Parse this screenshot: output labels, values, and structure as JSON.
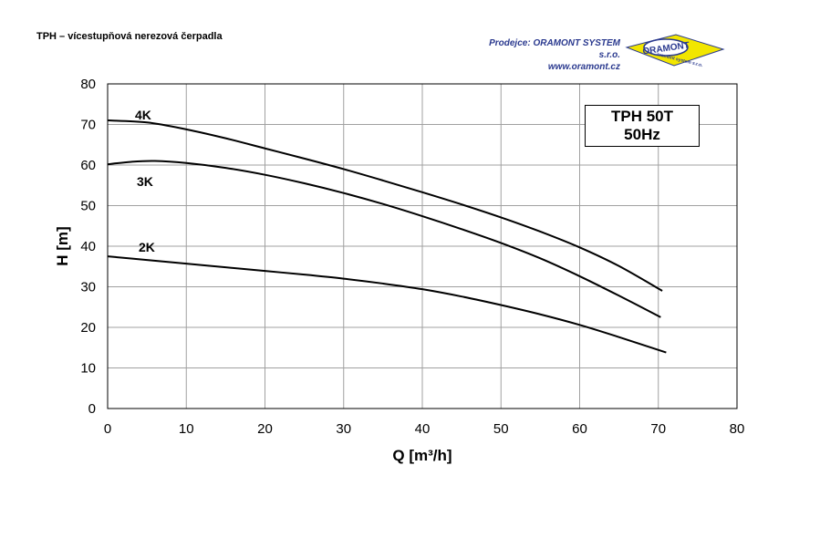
{
  "header": {
    "title": "TPH – vícestupňová nerezová čerpadla",
    "dealer_prefix": "Prodejce:",
    "dealer_name": "ORAMONT SYSTEM s.r.o.",
    "dealer_web": "www.oramont.cz",
    "logo_text": "ORAMONT",
    "logo_subtext": "oramont system s.r.o."
  },
  "model_box": {
    "line1": "TPH 50T",
    "line2": "50Hz"
  },
  "colors": {
    "brand_blue": "#2b3a8f",
    "logo_yellow": "#f2e600",
    "curve": "#000000",
    "grid": "#a0a0a0"
  },
  "chart_data": {
    "type": "line",
    "xlabel": "Q [m³/h]",
    "ylabel": "H [m]",
    "xlim": [
      0,
      80
    ],
    "ylim": [
      0,
      80
    ],
    "xticks": [
      0,
      10,
      20,
      30,
      40,
      50,
      60,
      70,
      80
    ],
    "yticks": [
      0,
      10,
      20,
      30,
      40,
      50,
      60,
      70,
      80
    ],
    "grid": true,
    "series": [
      {
        "name": "4K",
        "x": [
          0,
          5,
          10,
          15,
          20,
          25,
          30,
          35,
          40,
          45,
          50,
          55,
          60,
          65,
          70.5
        ],
        "y": [
          71,
          70.5,
          68.8,
          66.6,
          64.1,
          61.6,
          59,
          56.2,
          53.3,
          50.3,
          47.1,
          43.6,
          39.7,
          35.1,
          29
        ]
      },
      {
        "name": "3K",
        "x": [
          0,
          3,
          6,
          10,
          15,
          20,
          25,
          30,
          35,
          40,
          45,
          50,
          55,
          60,
          65,
          70.3
        ],
        "y": [
          60.2,
          60.8,
          61,
          60.5,
          59.3,
          57.6,
          55.5,
          53.1,
          50.4,
          47.4,
          44.2,
          40.8,
          37,
          32.6,
          27.8,
          22.5
        ]
      },
      {
        "name": "2K",
        "x": [
          0,
          5,
          10,
          15,
          20,
          25,
          30,
          35,
          40,
          45,
          50,
          55,
          60,
          65,
          71
        ],
        "y": [
          37.5,
          36.6,
          35.7,
          34.8,
          33.9,
          33,
          32,
          30.8,
          29.4,
          27.6,
          25.5,
          23.2,
          20.6,
          17.6,
          13.8
        ]
      }
    ]
  }
}
